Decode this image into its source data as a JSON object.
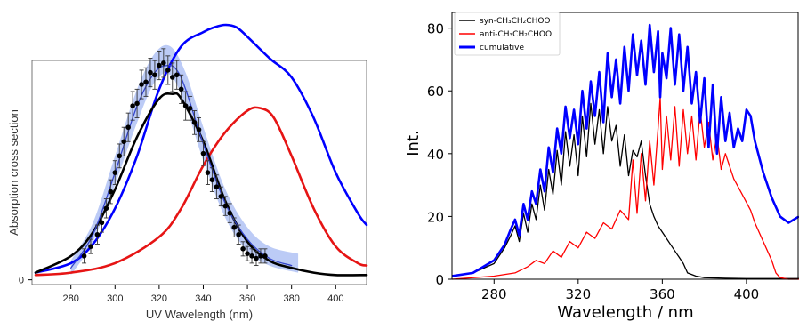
{
  "chart_data": [
    {
      "type": "line",
      "title": "",
      "xlabel": "UV Wavelength (nm)",
      "ylabel": "Absorption cross section",
      "xlim": [
        264,
        414
      ],
      "ylim": [
        -0.02,
        1.1
      ],
      "xticks": [
        280,
        300,
        320,
        340,
        360,
        380,
        400
      ],
      "yticks": [
        0
      ],
      "ytick_labels": [
        "0"
      ],
      "band": {
        "color": "#8fa8f0",
        "x": [
          280,
          290,
          300,
          310,
          318,
          325,
          332,
          340,
          350,
          360,
          370,
          383
        ],
        "upper": [
          0.08,
          0.24,
          0.52,
          0.8,
          0.95,
          0.98,
          0.87,
          0.64,
          0.38,
          0.22,
          0.14,
          0.11
        ],
        "lower": [
          0.02,
          0.16,
          0.4,
          0.66,
          0.83,
          0.86,
          0.73,
          0.5,
          0.26,
          0.12,
          0.06,
          0.03
        ]
      },
      "series": [
        {
          "color": "#0000ff",
          "width": 2.6,
          "x": [
            264,
            280,
            290,
            300,
            310,
            320,
            330,
            340,
            345,
            350,
            355,
            360,
            370,
            380,
            390,
            400,
            410,
            414
          ],
          "y": [
            0.03,
            0.07,
            0.15,
            0.3,
            0.52,
            0.8,
            0.98,
            1.04,
            1.06,
            1.07,
            1.06,
            1.02,
            0.93,
            0.85,
            0.68,
            0.45,
            0.28,
            0.23
          ]
        },
        {
          "color": "#e61414",
          "width": 2.6,
          "x": [
            264,
            280,
            300,
            320,
            330,
            340,
            350,
            360,
            366,
            372,
            380,
            390,
            400,
            410,
            414
          ],
          "y": [
            0.02,
            0.03,
            0.07,
            0.18,
            0.3,
            0.48,
            0.62,
            0.71,
            0.72,
            0.68,
            0.52,
            0.3,
            0.14,
            0.07,
            0.06
          ]
        },
        {
          "color": "#000000",
          "width": 2.6,
          "x": [
            264,
            280,
            290,
            300,
            310,
            320,
            326,
            330,
            340,
            350,
            360,
            370,
            380,
            390,
            400,
            414
          ],
          "y": [
            0.03,
            0.1,
            0.2,
            0.38,
            0.6,
            0.76,
            0.78,
            0.76,
            0.58,
            0.33,
            0.16,
            0.08,
            0.05,
            0.03,
            0.02,
            0.02
          ]
        },
        {
          "color": "#3344cc",
          "width": 1.3,
          "x": [
            280,
            290,
            300,
            310,
            318,
            324,
            328,
            332,
            340,
            350,
            360,
            370,
            380
          ],
          "y": [
            0.05,
            0.19,
            0.45,
            0.73,
            0.87,
            0.9,
            0.88,
            0.8,
            0.57,
            0.32,
            0.17,
            0.09,
            0.06
          ]
        }
      ],
      "points": {
        "x": [
          286,
          289,
          292,
          294,
          296,
          298,
          300,
          302,
          304,
          306,
          308,
          310,
          312,
          314,
          316,
          318,
          320,
          322,
          324,
          326,
          328,
          330,
          332,
          334,
          336,
          338,
          340,
          342,
          344,
          346,
          348,
          350,
          352,
          354,
          356,
          358,
          360,
          362,
          364,
          366,
          368
        ],
        "y": [
          0.1,
          0.14,
          0.19,
          0.24,
          0.3,
          0.37,
          0.45,
          0.52,
          0.58,
          0.64,
          0.73,
          0.74,
          0.82,
          0.83,
          0.87,
          0.86,
          0.9,
          0.91,
          0.88,
          0.85,
          0.86,
          0.8,
          0.73,
          0.72,
          0.66,
          0.63,
          0.53,
          0.45,
          0.42,
          0.39,
          0.35,
          0.31,
          0.28,
          0.22,
          0.19,
          0.13,
          0.11,
          0.1,
          0.09,
          0.1,
          0.1
        ],
        "err": [
          0.03,
          0.03,
          0.04,
          0.04,
          0.04,
          0.05,
          0.05,
          0.05,
          0.06,
          0.06,
          0.06,
          0.06,
          0.06,
          0.06,
          0.06,
          0.06,
          0.06,
          0.06,
          0.06,
          0.06,
          0.06,
          0.06,
          0.06,
          0.05,
          0.05,
          0.05,
          0.05,
          0.05,
          0.05,
          0.05,
          0.04,
          0.04,
          0.04,
          0.04,
          0.04,
          0.03,
          0.03,
          0.03,
          0.03,
          0.03,
          0.03
        ]
      }
    },
    {
      "type": "line",
      "title": "",
      "xlabel": "Wavelength / nm",
      "ylabel": "Int.",
      "xlim": [
        260,
        425
      ],
      "ylim": [
        0,
        85
      ],
      "xticks": [
        280,
        320,
        360,
        400
      ],
      "yticks": [
        0,
        20,
        40,
        60,
        80
      ],
      "legend_position": "top-left",
      "legend": [
        {
          "label": "syn-CH₃CH₂CHOO",
          "color": "#000000"
        },
        {
          "label": "anti-CH₃CH₂CHOO",
          "color": "#ff0000"
        },
        {
          "label": "cumulative",
          "color": "#0000ff"
        }
      ],
      "series": [
        {
          "color": "#000000",
          "width": 1.3,
          "x": [
            260,
            270,
            280,
            285,
            288,
            290,
            292,
            294,
            296,
            298,
            300,
            302,
            304,
            306,
            308,
            310,
            312,
            314,
            316,
            318,
            320,
            322,
            324,
            326,
            328,
            330,
            332,
            334,
            336,
            338,
            340,
            342,
            344,
            346,
            348,
            350,
            352,
            354,
            356,
            358,
            360,
            362,
            364,
            366,
            368,
            370,
            372,
            376,
            380,
            390,
            400,
            410,
            425
          ],
          "y": [
            1,
            2,
            5,
            10,
            14,
            17,
            12,
            21,
            15,
            24,
            19,
            30,
            22,
            35,
            27,
            41,
            30,
            47,
            36,
            46,
            33,
            52,
            39,
            56,
            43,
            54,
            40,
            55,
            44,
            49,
            36,
            46,
            33,
            41,
            39,
            44,
            33,
            24,
            20,
            17,
            15,
            13,
            11,
            9,
            7,
            5,
            2,
            1,
            0.5,
            0.3,
            0.2,
            0.2,
            0.2
          ]
        },
        {
          "color": "#ff0000",
          "width": 1.3,
          "x": [
            260,
            280,
            290,
            296,
            300,
            304,
            308,
            312,
            316,
            320,
            324,
            328,
            332,
            336,
            340,
            344,
            346,
            348,
            350,
            352,
            354,
            356,
            358,
            359,
            360,
            362,
            364,
            366,
            368,
            370,
            372,
            374,
            376,
            378,
            380,
            382,
            384,
            386,
            388,
            390,
            394,
            398,
            402,
            404,
            408,
            412,
            414,
            416,
            420,
            425
          ],
          "y": [
            0,
            1,
            2,
            4,
            6,
            5,
            9,
            7,
            12,
            10,
            15,
            13,
            18,
            16,
            22,
            19,
            38,
            21,
            40,
            25,
            44,
            30,
            48,
            58,
            35,
            52,
            38,
            55,
            36,
            54,
            40,
            52,
            38,
            54,
            42,
            50,
            38,
            46,
            35,
            40,
            32,
            27,
            22,
            18,
            12,
            6,
            2,
            0.5,
            0,
            0
          ]
        },
        {
          "color": "#0000ff",
          "width": 2.6,
          "x": [
            260,
            270,
            280,
            285,
            288,
            290,
            292,
            294,
            296,
            298,
            300,
            302,
            304,
            306,
            308,
            310,
            312,
            314,
            316,
            318,
            320,
            322,
            324,
            326,
            328,
            330,
            332,
            334,
            336,
            338,
            340,
            342,
            344,
            346,
            348,
            350,
            352,
            354,
            356,
            358,
            359,
            360,
            362,
            364,
            366,
            368,
            370,
            372,
            374,
            376,
            378,
            380,
            382,
            384,
            386,
            388,
            390,
            392,
            394,
            396,
            398,
            400,
            402,
            404,
            408,
            412,
            416,
            420,
            425
          ],
          "y": [
            1,
            2,
            6,
            11,
            16,
            19,
            14,
            24,
            19,
            28,
            24,
            35,
            28,
            42,
            34,
            48,
            40,
            55,
            45,
            54,
            43,
            60,
            48,
            63,
            52,
            66,
            50,
            72,
            58,
            70,
            56,
            74,
            60,
            78,
            65,
            76,
            62,
            81,
            66,
            79,
            58,
            72,
            64,
            80,
            62,
            78,
            60,
            74,
            56,
            66,
            50,
            64,
            42,
            62,
            40,
            58,
            44,
            53,
            42,
            48,
            44,
            54,
            52,
            44,
            34,
            26,
            20,
            18,
            20
          ]
        }
      ]
    }
  ]
}
